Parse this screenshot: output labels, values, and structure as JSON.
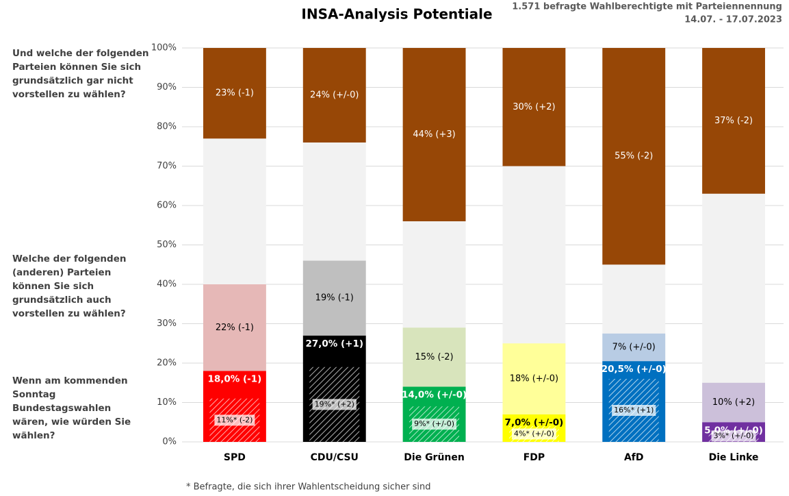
{
  "chart_data": {
    "type": "stacked_potential_bar",
    "title": "INSA-Analysis Potentiale",
    "subtitle": [
      "1.571 befragte Wahlberechtigte mit Parteiennennung",
      "14.07. - 17.07.2023"
    ],
    "footnote": "* Befragte, die sich ihrer Wahlentscheidung sicher sind",
    "categories": [
      "SPD",
      "CDU/CSU",
      "Die Grünen",
      "FDP",
      "AfD",
      "Die Linke"
    ],
    "ylim": [
      0,
      100
    ],
    "yticks": [
      {
        "value": 0,
        "label": "0%"
      },
      {
        "value": 10,
        "label": "10%"
      },
      {
        "value": 20,
        "label": "20%"
      },
      {
        "value": 30,
        "label": "30%"
      },
      {
        "value": 40,
        "label": "40%"
      },
      {
        "value": 50,
        "label": "50%"
      },
      {
        "value": 60,
        "label": "60%"
      },
      {
        "value": 70,
        "label": "70%"
      },
      {
        "value": 80,
        "label": "80%"
      },
      {
        "value": 90,
        "label": "90%"
      },
      {
        "value": 100,
        "label": "100%"
      }
    ],
    "grid": true,
    "background_color": "#f2f2f2",
    "series": [
      {
        "name": "Wenn am kommenden Sonntag Bundestagswahlen wären, wie würden Sie wählen?",
        "role": "vote",
        "colors": [
          "#ff0000",
          "#000000",
          "#00b050",
          "#ffff00",
          "#0070c0",
          "#7030a0"
        ],
        "values": [
          18.0,
          27.0,
          14.0,
          7.0,
          20.5,
          5.0
        ],
        "value_labels": [
          "18,0% (-1)",
          "27,0% (+1)",
          "14,0% (+/-0)",
          "7,0% (+/-0)",
          "20,5% (+/-0)",
          "5,0% (+/-0)"
        ]
      },
      {
        "name": "Welche der folgenden (anderen) Parteien können Sie sich grundsätzlich auch vorstellen zu wählen?",
        "role": "potential",
        "colors": [
          "#e6b8b7",
          "#bfbfbf",
          "#d8e4bc",
          "#ffff99",
          "#b8cce4",
          "#ccc0da"
        ],
        "values": [
          22,
          19,
          15,
          18,
          7,
          10
        ],
        "value_labels": [
          "22% (-1)",
          "19% (-1)",
          "15% (-2)",
          "18% (+/-0)",
          "7% (+/-0)",
          "10% (+2)"
        ]
      },
      {
        "name": "Und welche der folgenden Parteien können Sie sich grundsätzlich gar nicht vorstellen zu wählen?",
        "role": "rejection",
        "color": "#974706",
        "values": [
          23,
          24,
          44,
          30,
          55,
          37
        ],
        "value_labels": [
          "23% (-1)",
          "24% (+/-0)",
          "44% (+3)",
          "30% (+2)",
          "55% (-2)",
          "37% (-2)"
        ]
      },
      {
        "role": "sure",
        "values": [
          11,
          19,
          9,
          4,
          16,
          3
        ],
        "value_labels": [
          "11%* (-2)",
          "19%* (+2)",
          "9%* (+/-0)",
          "4%* (+/-0)",
          "16%* (+1)",
          "3%* (+/-0)"
        ]
      }
    ]
  }
}
